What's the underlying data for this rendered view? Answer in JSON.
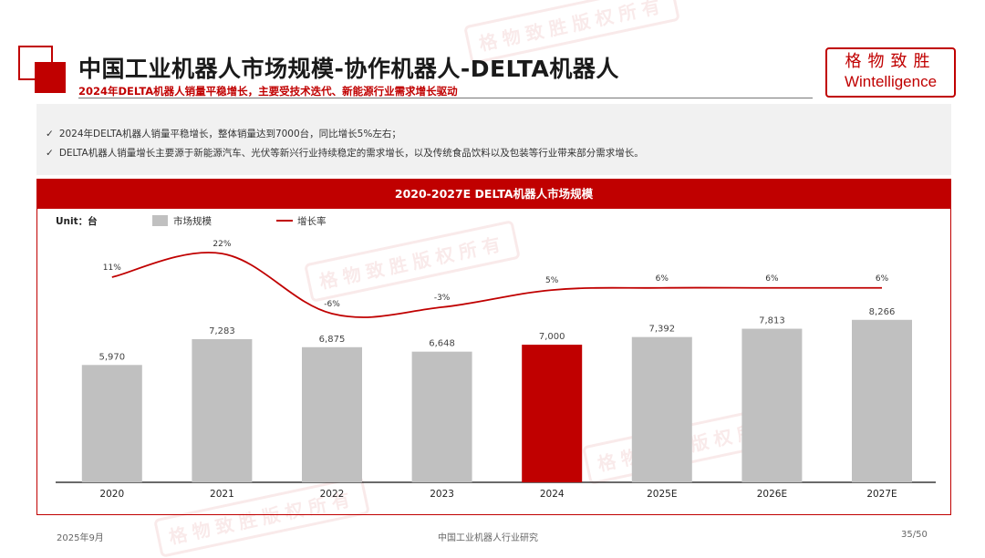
{
  "header": {
    "title": "中国工业机器人市场规模-协作机器人-DELTA机器人",
    "subtitle": "2024年DELTA机器人销量平稳增长，主要受技术迭代、新能源行业需求增长驱动"
  },
  "logo": {
    "cn": "格物致胜",
    "en": "Wintelligence"
  },
  "watermark": "格物致胜版权所有",
  "bullets": [
    "2024年DELTA机器人销量平稳增长，整体销量达到7000台，同比增长5%左右；",
    "DELTA机器人销量增长主要源于新能源汽车、光伏等新兴行业持续稳定的需求增长，以及传统食品饮料以及包装等行业带来部分需求增长。"
  ],
  "check_icon": "✓",
  "chart_data": {
    "type": "bar",
    "title": "2020-2027E DELTA机器人市场规模",
    "unit_label": "Unit：台",
    "categories": [
      "2020",
      "2021",
      "2022",
      "2023",
      "2024",
      "2025E",
      "2026E",
      "2027E"
    ],
    "series": [
      {
        "name": "市场规模",
        "values": [
          5970,
          7283,
          6875,
          6648,
          7000,
          7392,
          7813,
          8266
        ],
        "labels": [
          "5,970",
          "7,283",
          "6,875",
          "6,648",
          "7,000",
          "7,392",
          "7,813",
          "8,266"
        ]
      },
      {
        "name": "增长率",
        "values": [
          11,
          22,
          -6,
          -3,
          5,
          6,
          6,
          6
        ],
        "labels": [
          "11%",
          "22%",
          "-6%",
          "-3%",
          "5%",
          "6%",
          "6%",
          "6%"
        ]
      }
    ],
    "highlight_index": 4,
    "colors": {
      "bar": "#c0c0c0",
      "highlight": "#c00000",
      "line": "#c00000"
    },
    "legend_position": "top-left",
    "grid": false
  },
  "footer": {
    "date": "2025年9月",
    "center": "中国工业机器人行业研究",
    "page": "35/50"
  }
}
